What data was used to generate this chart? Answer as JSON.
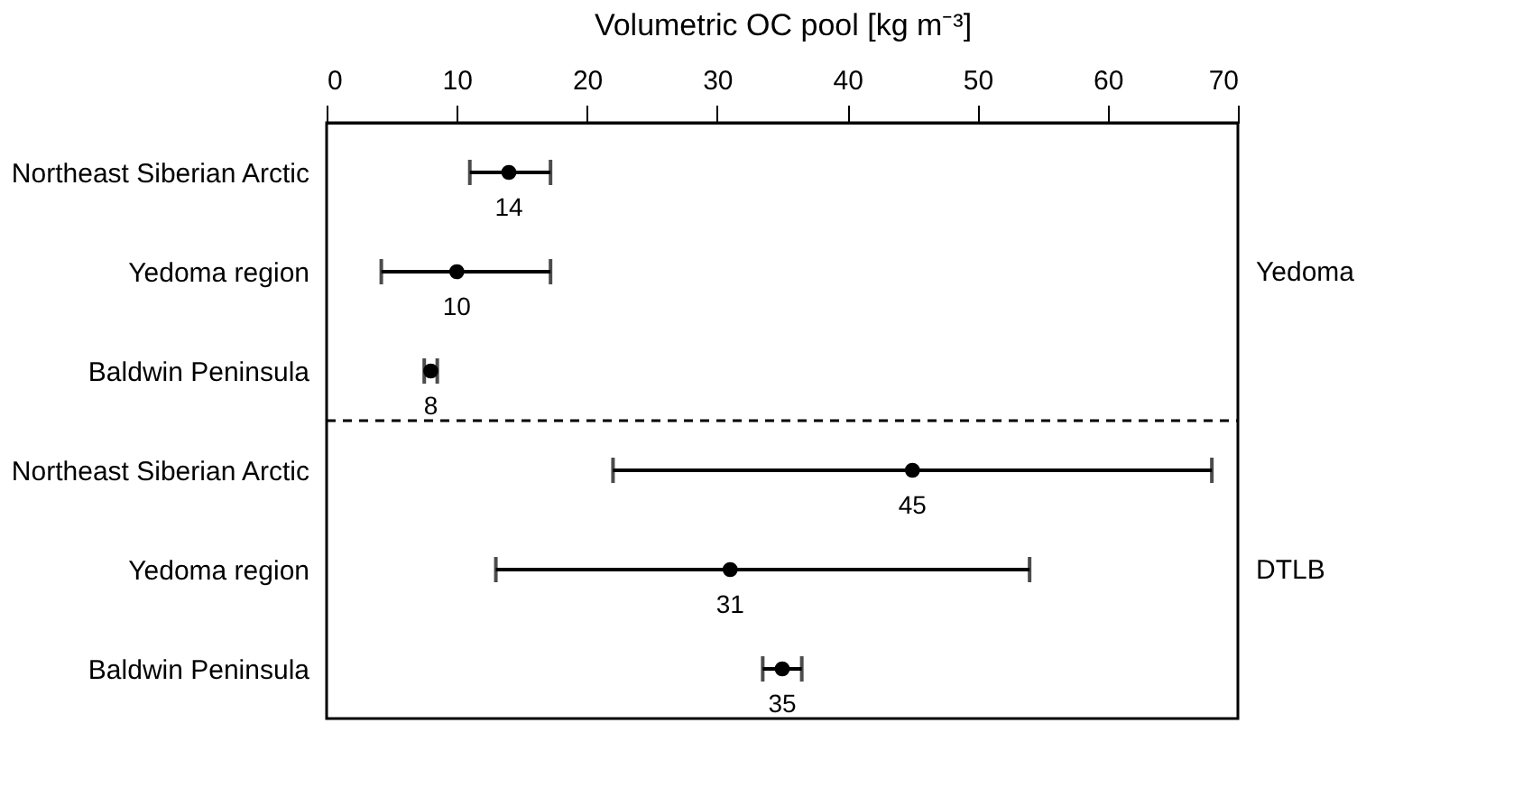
{
  "chart_data": {
    "type": "scatter",
    "xlabel": "Volumetric OC pool [kg m⁻³]",
    "categories": [
      "Northeast Siberian Arctic",
      "Yedoma region",
      "Baldwin Peninsula",
      "Northeast Siberian Arctic",
      "Yedoma region",
      "Baldwin Peninsula"
    ],
    "orientation": "horizontal",
    "values": [
      14,
      10,
      8,
      45,
      31,
      35
    ],
    "errors": [
      [
        11,
        17.2
      ],
      [
        4.2,
        17.2
      ],
      [
        7.5,
        8.5
      ],
      [
        22,
        68
      ],
      [
        13,
        54
      ],
      [
        33.5,
        36.5
      ]
    ],
    "color": "#000000",
    "marker": "circle",
    "data_labels": true,
    "xlim": [
      0,
      70
    ],
    "xticks": [
      0,
      10,
      20,
      30,
      40,
      50,
      60,
      70
    ],
    "grid": false,
    "annotations": [
      "Yedoma",
      "DTLB"
    ]
  }
}
